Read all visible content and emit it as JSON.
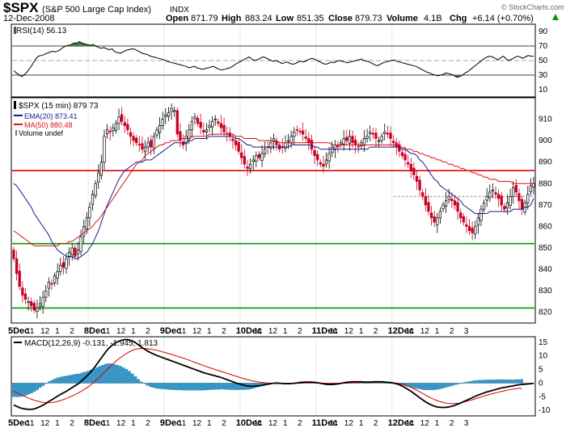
{
  "header": {
    "symbol": "$SPX",
    "name": "(S&P 500 Large Cap Index)",
    "exchange": "INDX",
    "date": "12-Dec-2008",
    "open_label": "Open",
    "open": "871.79",
    "high_label": "High",
    "high": "883.24",
    "low_label": "Low",
    "low": "851.35",
    "close_label": "Close",
    "close": "879.73",
    "volume_label": "Volume",
    "volume": "4.1B",
    "chg_label": "Chg",
    "chg": "+6.14 (+0.70%)",
    "chg_icon": "up-arrow-icon",
    "copyright": "© StockCharts.com"
  },
  "colors": {
    "candle_up": "#000000",
    "candle_down": "#cc0022",
    "ema": "#1a1a8c",
    "ma": "#dd1111",
    "rsi": "#000000",
    "rsi_fill": "#4a7a4a",
    "support": "#009900",
    "resistance": "#dd0000",
    "macd_hist": "#3399cc",
    "signal": "#dd0000"
  },
  "chart_data": [
    {
      "type": "line",
      "panel": "rsi",
      "legend": "RSI(14) 56.13",
      "ylim": [
        0,
        100
      ],
      "yticks": [
        10,
        30,
        50,
        70,
        90
      ],
      "reference_lines": [
        30,
        50,
        70
      ],
      "values": [
        36,
        33,
        30,
        28,
        31,
        35,
        40,
        46,
        52,
        56,
        57,
        58,
        60,
        61,
        63,
        62,
        63,
        65,
        68,
        70,
        71,
        72,
        74,
        74,
        76,
        74,
        73,
        72,
        71,
        72,
        70,
        68,
        67,
        68,
        66,
        65,
        66,
        62,
        61,
        60,
        62,
        64,
        65,
        66,
        66,
        64,
        62,
        60,
        59,
        58,
        56,
        55,
        54,
        53,
        52,
        51,
        49,
        48,
        47,
        46,
        45,
        44,
        43,
        42,
        40,
        41,
        42,
        40,
        39,
        38,
        39,
        40,
        41,
        42,
        40,
        38,
        37,
        38,
        39,
        40,
        42,
        45,
        47,
        49,
        51,
        53,
        55,
        52,
        50,
        51,
        53,
        55,
        54,
        52,
        50,
        49,
        50,
        48,
        46,
        47,
        48,
        46,
        45,
        46,
        48,
        49,
        48,
        50,
        52,
        53,
        52,
        50,
        48,
        46,
        45,
        46,
        48,
        47,
        49,
        50,
        49,
        48,
        47,
        48,
        49,
        50,
        51,
        52,
        50,
        49,
        48,
        46,
        44,
        43,
        45,
        47,
        48,
        49,
        50,
        51,
        49,
        48,
        47,
        46,
        45,
        44,
        43,
        42,
        40,
        38,
        36,
        34,
        33,
        31,
        30,
        29,
        30,
        31,
        33,
        32,
        31,
        29,
        27,
        28,
        30,
        33,
        35,
        38,
        41,
        44,
        47,
        50,
        53,
        55,
        56,
        55,
        53,
        51,
        54,
        56,
        52,
        50,
        52,
        54,
        56,
        55,
        53,
        55,
        57,
        56,
        56
      ]
    },
    {
      "type": "candlestick",
      "panel": "price",
      "legend_title": "$SPX (15 min) 879.73",
      "legend_ema": "EMA(20) 873.41",
      "legend_ma": "MA(50) 880.48",
      "legend_volume": "Volume undef",
      "ylim": [
        815,
        920
      ],
      "yticks": [
        820,
        830,
        840,
        850,
        860,
        870,
        880,
        890,
        900,
        910
      ],
      "close_line": 874,
      "horizontal_lines": [
        {
          "value": 886,
          "color": "resistance"
        },
        {
          "value": 852,
          "color": "support"
        },
        {
          "value": 822,
          "color": "support"
        }
      ],
      "close": [
        845,
        838,
        832,
        828,
        826,
        825,
        823,
        821,
        822,
        824,
        827,
        830,
        834,
        833,
        837,
        839,
        842,
        841,
        845,
        848,
        850,
        846,
        849,
        855,
        860,
        864,
        869,
        875,
        880,
        885,
        890,
        902,
        905,
        904,
        906,
        908,
        911,
        909,
        907,
        905,
        902,
        900,
        899,
        898,
        896,
        897,
        899,
        897,
        902,
        905,
        907,
        910,
        912,
        913,
        915,
        914,
        903,
        900,
        898,
        902,
        905,
        909,
        911,
        908,
        906,
        904,
        905,
        907,
        909,
        910,
        908,
        906,
        904,
        903,
        902,
        900,
        898,
        895,
        892,
        889,
        887,
        889,
        891,
        893,
        892,
        894,
        896,
        897,
        899,
        901,
        898,
        896,
        897,
        899,
        900,
        902,
        904,
        905,
        904,
        903,
        901,
        899,
        896,
        893,
        891,
        889,
        888,
        891,
        894,
        897,
        898,
        897,
        899,
        901,
        900,
        902,
        899,
        898,
        897,
        899,
        901,
        902,
        904,
        903,
        901,
        900,
        902,
        904,
        903,
        901,
        899,
        897,
        895,
        893,
        891,
        889,
        886,
        884,
        881,
        877,
        874,
        870,
        867,
        864,
        862,
        864,
        867,
        870,
        872,
        874,
        872,
        870,
        867,
        864,
        862,
        860,
        858,
        857,
        860,
        864,
        868,
        871,
        874,
        876,
        877,
        875,
        873,
        870,
        868,
        871,
        874,
        878,
        876,
        872,
        868,
        871,
        875,
        879,
        880
      ],
      "ema_values": [
        880,
        879,
        877,
        875,
        873,
        871,
        869,
        866,
        864,
        862,
        860,
        858,
        856,
        853,
        851,
        849,
        848,
        847,
        846,
        846,
        846,
        845,
        845,
        846,
        847,
        848,
        850,
        852,
        855,
        858,
        862,
        866,
        870,
        873,
        876,
        879,
        882,
        884,
        886,
        887,
        888,
        889,
        890,
        890,
        890,
        891,
        891,
        891,
        892,
        893,
        894,
        895,
        896,
        897,
        898,
        899,
        899,
        899,
        899,
        899,
        900,
        900,
        901,
        901,
        901,
        901,
        901,
        902,
        902,
        902,
        902,
        902,
        902,
        902,
        902,
        902,
        901,
        901,
        900,
        899,
        898,
        898,
        897,
        897,
        897,
        897,
        897,
        897,
        897,
        897,
        897,
        897,
        897,
        897,
        897,
        898,
        898,
        898,
        898,
        898,
        898,
        898,
        898,
        897,
        897,
        896,
        896,
        896,
        896,
        896,
        896,
        896,
        896,
        896,
        896,
        896,
        896,
        896,
        896,
        896,
        896,
        896,
        897,
        897,
        897,
        897,
        897,
        897,
        897,
        897,
        897,
        897,
        897,
        896,
        896,
        895,
        894,
        894,
        893,
        891,
        890,
        888,
        886,
        884,
        882,
        881,
        879,
        878,
        877,
        876,
        875,
        874,
        873,
        872,
        870,
        869,
        868,
        867,
        866,
        866,
        866,
        866,
        866,
        867,
        867,
        867,
        867,
        867,
        867,
        867,
        867,
        868,
        868,
        868,
        868,
        869,
        869,
        870,
        873
      ]
    },
    {
      "type": "line",
      "panel": "price_ma50",
      "values": [
        858,
        857,
        856,
        855,
        854,
        853,
        852,
        851,
        851,
        851,
        851,
        851,
        851,
        851,
        851,
        851,
        852,
        852,
        852,
        853,
        853,
        854,
        855,
        856,
        857,
        858,
        859,
        860,
        862,
        863,
        865,
        867,
        869,
        871,
        873,
        875,
        877,
        879,
        881,
        883,
        885,
        887,
        889,
        890,
        891,
        893,
        894,
        895,
        896,
        897,
        898,
        898,
        899,
        899,
        900,
        900,
        900,
        901,
        901,
        901,
        901,
        902,
        902,
        902,
        902,
        902,
        902,
        903,
        903,
        903,
        903,
        903,
        903,
        903,
        903,
        903,
        902,
        902,
        902,
        901,
        901,
        901,
        901,
        901,
        900,
        900,
        900,
        900,
        900,
        900,
        900,
        899,
        899,
        899,
        899,
        899,
        899,
        899,
        899,
        899,
        899,
        899,
        899,
        899,
        899,
        899,
        899,
        899,
        899,
        898,
        898,
        898,
        898,
        898,
        898,
        898,
        898,
        898,
        898,
        898,
        898,
        898,
        898,
        898,
        898,
        898,
        898,
        898,
        898,
        898,
        898,
        898,
        897,
        897,
        896,
        896,
        896,
        895,
        895,
        894,
        894,
        893,
        893,
        892,
        892,
        891,
        891,
        890,
        890,
        889,
        889,
        888,
        888,
        887,
        887,
        886,
        886,
        885,
        885,
        884,
        884,
        883,
        883,
        882,
        882,
        882,
        881,
        881,
        881,
        881,
        881,
        880,
        880,
        880,
        880,
        880,
        880,
        880,
        880
      ]
    },
    {
      "type": "line",
      "panel": "macd",
      "legend": "MACD(12,26,9) -0.131, -1.945, 1.813",
      "ylim": [
        -12,
        17
      ],
      "yticks": [
        -10,
        -5,
        0,
        5,
        10,
        15
      ],
      "macd": [
        -8,
        -8.5,
        -9,
        -9.3,
        -9.5,
        -9.6,
        -9.6,
        -9.4,
        -9,
        -8.5,
        -8,
        -7.3,
        -6.6,
        -6,
        -5.3,
        -4.6,
        -4,
        -3.4,
        -2.8,
        -2.1,
        -1.4,
        -0.7,
        0,
        1,
        2,
        3,
        4.2,
        5.5,
        7,
        8.5,
        10,
        11.5,
        12.8,
        13.8,
        14.6,
        15.2,
        15.6,
        15.9,
        16,
        15.8,
        15.4,
        14.8,
        14,
        13.2,
        12.5,
        11.8,
        11.2,
        10.7,
        10.2,
        9.8,
        9.4,
        9,
        8.6,
        8.2,
        7.8,
        7.4,
        7,
        6.6,
        6.2,
        5.8,
        5.4,
        5,
        4.6,
        4.2,
        3.8,
        3.5,
        3.2,
        2.9,
        2.6,
        2.3,
        2,
        1.6,
        1.2,
        0.8,
        0.4,
        0,
        -0.3,
        -0.6,
        -0.9,
        -1.1,
        -1.2,
        -1.1,
        -1,
        -0.9,
        -0.7,
        -0.5,
        -0.3,
        -0.1,
        0,
        0,
        -0.1,
        -0.2,
        -0.2,
        -0.2,
        -0.1,
        0,
        0.2,
        0.3,
        0.4,
        0.4,
        0.4,
        0.3,
        0.2,
        0,
        -0.2,
        -0.4,
        -0.5,
        -0.5,
        -0.4,
        -0.3,
        -0.1,
        0.1,
        0.3,
        0.4,
        0.5,
        0.5,
        0.5,
        0.5,
        0.4,
        0.4,
        0.4,
        0.5,
        0.5,
        0.5,
        0.5,
        0.4,
        0.3,
        0.2,
        0,
        -0.3,
        -0.7,
        -1.2,
        -1.8,
        -2.5,
        -3.2,
        -4,
        -4.8,
        -5.6,
        -6.4,
        -7.1,
        -7.7,
        -8.2,
        -8.6,
        -8.8,
        -8.9,
        -8.9,
        -8.8,
        -8.6,
        -8.3,
        -7.9,
        -7.5,
        -7,
        -6.5,
        -6,
        -5.5,
        -5,
        -4.5,
        -4.1,
        -3.7,
        -3.3,
        -3,
        -2.7,
        -2.4,
        -2.1,
        -1.8,
        -1.6,
        -1.4,
        -1.2,
        -1,
        -0.8,
        -0.6,
        -0.5,
        -0.4,
        -0.3,
        -0.2,
        -0.1
      ],
      "signal": [
        -3,
        -3.5,
        -4,
        -4.5,
        -5,
        -5.5,
        -5.9,
        -6.3,
        -6.6,
        -6.9,
        -7.1,
        -7.2,
        -7.2,
        -7.1,
        -6.9,
        -6.6,
        -6.3,
        -5.9,
        -5.5,
        -5,
        -4.5,
        -4,
        -3.4,
        -2.8,
        -2.1,
        -1.4,
        -0.6,
        0.3,
        1.3,
        2.3,
        3.4,
        4.5,
        5.6,
        6.7,
        7.7,
        8.6,
        9.4,
        10.2,
        10.9,
        11.5,
        12,
        12.4,
        12.6,
        12.7,
        12.7,
        12.6,
        12.5,
        12.3,
        12.1,
        11.8,
        11.5,
        11.2,
        10.9,
        10.6,
        10.2,
        9.9,
        9.5,
        9.2,
        8.8,
        8.4,
        8,
        7.6,
        7.2,
        6.8,
        6.4,
        6,
        5.6,
        5.3,
        4.9,
        4.6,
        4.2,
        3.9,
        3.5,
        3.2,
        2.8,
        2.5,
        2.1,
        1.8,
        1.5,
        1.2,
        0.9,
        0.7,
        0.5,
        0.3,
        0.2,
        0.1,
        0,
        -0.1,
        -0.1,
        -0.1,
        -0.1,
        -0.1,
        -0.1,
        -0.1,
        -0.1,
        -0.1,
        0,
        0,
        0.1,
        0.1,
        0.1,
        0.1,
        0.1,
        0.1,
        0,
        0,
        -0.1,
        -0.1,
        -0.1,
        -0.1,
        -0.1,
        0,
        0,
        0.1,
        0.1,
        0.2,
        0.2,
        0.2,
        0.3,
        0.3,
        0.3,
        0.3,
        0.3,
        0.3,
        0.3,
        0.3,
        0.2,
        0.2,
        0.1,
        0,
        -0.2,
        -0.5,
        -0.8,
        -1.2,
        -1.7,
        -2.2,
        -2.8,
        -3.4,
        -4,
        -4.6,
        -5.2,
        -5.7,
        -6.2,
        -6.6,
        -6.9,
        -7.2,
        -7.4,
        -7.5,
        -7.5,
        -7.4,
        -7.3,
        -7.1,
        -6.8,
        -6.5,
        -6.2,
        -5.9,
        -5.5,
        -5.2,
        -4.8,
        -4.5,
        -4.2,
        -3.9,
        -3.6,
        -3.4,
        -3.1,
        -2.9,
        -2.6,
        -2.4,
        -2.2,
        -2.1,
        -1.9,
        -1.9
      ]
    }
  ],
  "x_axis": {
    "label_sets": [
      [
        "5Dec",
        "11",
        "12",
        "1",
        "2"
      ],
      [
        "8Dec",
        "11",
        "12",
        "1",
        "2"
      ],
      [
        "9Dec",
        "11",
        "12",
        "1",
        "2"
      ],
      [
        "10Dec",
        "11",
        "12",
        "1",
        "2"
      ],
      [
        "11Dec",
        "11",
        "12",
        "1",
        "2"
      ],
      [
        "12Dec",
        "11",
        "12",
        "1",
        "2",
        "3"
      ]
    ]
  }
}
